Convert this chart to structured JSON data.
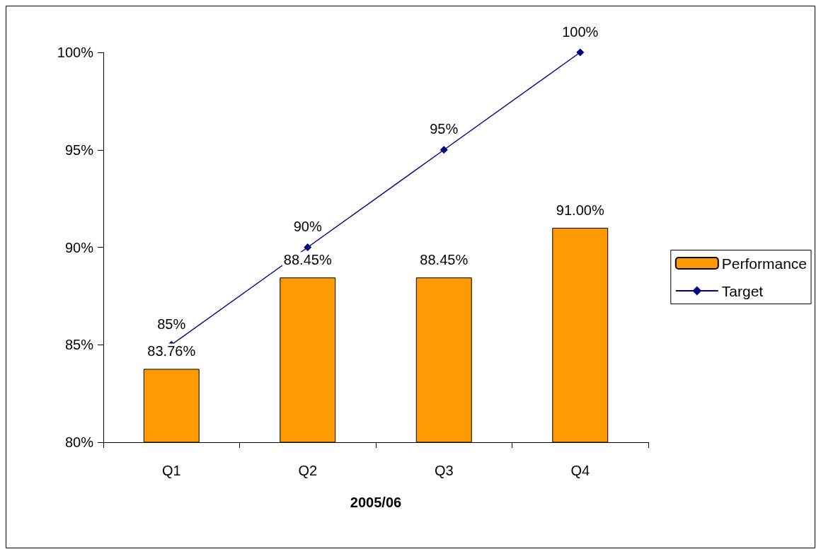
{
  "chart_data": {
    "type": "bar",
    "xlabel": "2005/06",
    "categories": [
      "Q1",
      "Q2",
      "Q3",
      "Q4"
    ],
    "series": [
      {
        "name": "Performance",
        "color": "#ff9900",
        "values": [
          83.76,
          88.45,
          88.45,
          91.0
        ],
        "value_labels": [
          "83.76%",
          "88.45%",
          "88.45%",
          "91.00%"
        ]
      },
      {
        "name": "Target",
        "type": "line",
        "color": "#000080",
        "values": [
          85,
          90,
          95,
          100
        ],
        "value_labels": [
          "85%",
          "90%",
          "95%",
          "100%"
        ]
      }
    ],
    "ylim": [
      80,
      100
    ],
    "yticks": [
      {
        "value": 80,
        "label": "80%"
      },
      {
        "value": 85,
        "label": "85%"
      },
      {
        "value": 90,
        "label": "90%"
      },
      {
        "value": 95,
        "label": "95%"
      },
      {
        "value": 100,
        "label": "100%"
      }
    ],
    "grid": false,
    "legend": "right",
    "marker": "diamond"
  }
}
